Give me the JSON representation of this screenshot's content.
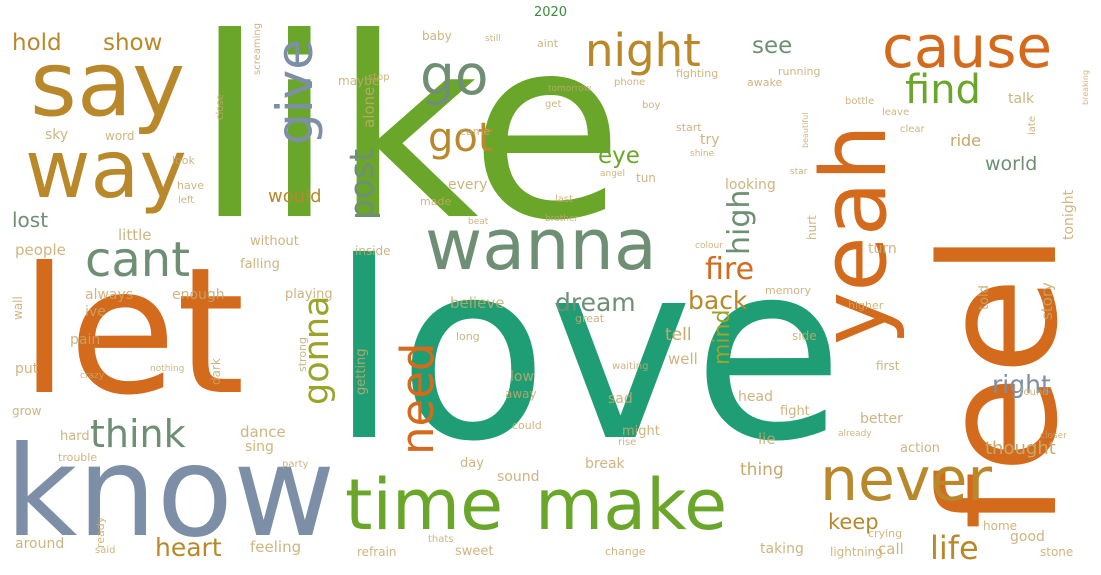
{
  "title": "2020",
  "palette": {
    "green": "#6aa62a",
    "teal": "#1f9e75",
    "orange": "#d46a1c",
    "gold": "#b8882a",
    "slate": "#7d8fa6",
    "olive": "#9aa32a",
    "sage": "#6f8f74",
    "tan": "#c5a96b"
  },
  "words": [
    {
      "text": "like",
      "color": "green"
    },
    {
      "text": "love",
      "color": "teal"
    },
    {
      "text": "let",
      "color": "orange"
    },
    {
      "text": "know",
      "color": "slate"
    },
    {
      "text": "feel",
      "color": "orange"
    },
    {
      "text": "say",
      "color": "gold"
    },
    {
      "text": "way",
      "color": "gold"
    },
    {
      "text": "yeah",
      "color": "orange"
    },
    {
      "text": "wanna",
      "color": "sage"
    },
    {
      "text": "time",
      "color": "green"
    },
    {
      "text": "make",
      "color": "green"
    },
    {
      "text": "never",
      "color": "gold"
    },
    {
      "text": "cause",
      "color": "orange"
    },
    {
      "text": "night",
      "color": "gold"
    },
    {
      "text": "give",
      "color": "slate"
    },
    {
      "text": "go",
      "color": "sage"
    },
    {
      "text": "cant",
      "color": "sage"
    },
    {
      "text": "find",
      "color": "green"
    },
    {
      "text": "got",
      "color": "gold"
    },
    {
      "text": "need",
      "color": "orange"
    },
    {
      "text": "think",
      "color": "sage"
    },
    {
      "text": "post",
      "color": "sage"
    },
    {
      "text": "gonna",
      "color": "olive"
    },
    {
      "text": "high",
      "color": "sage"
    },
    {
      "text": "fire",
      "color": "orange"
    },
    {
      "text": "dream",
      "color": "sage"
    },
    {
      "text": "back",
      "color": "gold"
    },
    {
      "text": "life",
      "color": "gold"
    },
    {
      "text": "heart",
      "color": "gold"
    },
    {
      "text": "right",
      "color": "slate"
    },
    {
      "text": "hold",
      "color": "gold"
    },
    {
      "text": "show",
      "color": "gold"
    },
    {
      "text": "eye",
      "color": "green"
    },
    {
      "text": "see",
      "color": "sage"
    },
    {
      "text": "mind",
      "color": "olive"
    },
    {
      "text": "keep",
      "color": "gold"
    },
    {
      "text": "would",
      "color": "gold"
    },
    {
      "text": "lost",
      "color": "sage"
    },
    {
      "text": "world",
      "color": "sage"
    },
    {
      "text": "story",
      "color": "tan"
    },
    {
      "text": "tonight",
      "color": "tan"
    },
    {
      "text": "thought",
      "color": "tan"
    },
    {
      "text": "dance",
      "color": "tan"
    },
    {
      "text": "believe",
      "color": "tan"
    },
    {
      "text": "little",
      "color": "tan"
    },
    {
      "text": "people",
      "color": "tan"
    },
    {
      "text": "falling",
      "color": "tan"
    },
    {
      "text": "without",
      "color": "tan"
    },
    {
      "text": "looking",
      "color": "tan"
    },
    {
      "text": "every",
      "color": "tan"
    },
    {
      "text": "sky",
      "color": "tan"
    },
    {
      "text": "word",
      "color": "tan"
    },
    {
      "text": "alone",
      "color": "tan"
    },
    {
      "text": "maybe",
      "color": "tan"
    },
    {
      "text": "baby",
      "color": "tan"
    },
    {
      "text": "made",
      "color": "tan"
    },
    {
      "text": "inside",
      "color": "tan"
    },
    {
      "text": "always",
      "color": "tan"
    },
    {
      "text": "enough",
      "color": "tan"
    },
    {
      "text": "playing",
      "color": "tan"
    },
    {
      "text": "getting",
      "color": "tan"
    },
    {
      "text": "ive",
      "color": "tan"
    },
    {
      "text": "pain",
      "color": "tan"
    },
    {
      "text": "put",
      "color": "tan"
    },
    {
      "text": "grow",
      "color": "tan"
    },
    {
      "text": "hard",
      "color": "tan"
    },
    {
      "text": "trouble",
      "color": "tan"
    },
    {
      "text": "around",
      "color": "tan"
    },
    {
      "text": "ready",
      "color": "tan"
    },
    {
      "text": "said",
      "color": "tan"
    },
    {
      "text": "feeling",
      "color": "tan"
    },
    {
      "text": "sing",
      "color": "tan"
    },
    {
      "text": "refrain",
      "color": "tan"
    },
    {
      "text": "sweet",
      "color": "tan"
    },
    {
      "text": "sound",
      "color": "tan"
    },
    {
      "text": "break",
      "color": "tan"
    },
    {
      "text": "day",
      "color": "tan"
    },
    {
      "text": "sad",
      "color": "tan"
    },
    {
      "text": "low",
      "color": "tan"
    },
    {
      "text": "away",
      "color": "tan"
    },
    {
      "text": "could",
      "color": "tan"
    },
    {
      "text": "might",
      "color": "tan"
    },
    {
      "text": "well",
      "color": "tan"
    },
    {
      "text": "tell",
      "color": "tan"
    },
    {
      "text": "thing",
      "color": "tan"
    },
    {
      "text": "lie",
      "color": "tan"
    },
    {
      "text": "head",
      "color": "tan"
    },
    {
      "text": "fight",
      "color": "tan"
    },
    {
      "text": "better",
      "color": "tan"
    },
    {
      "text": "memory",
      "color": "tan"
    },
    {
      "text": "side",
      "color": "tan"
    },
    {
      "text": "told",
      "color": "tan"
    },
    {
      "text": "turn",
      "color": "tan"
    },
    {
      "text": "hurt",
      "color": "tan"
    },
    {
      "text": "try",
      "color": "tan"
    },
    {
      "text": "ride",
      "color": "tan"
    },
    {
      "text": "talk",
      "color": "tan"
    },
    {
      "text": "awake",
      "color": "tan"
    },
    {
      "text": "running",
      "color": "tan"
    },
    {
      "text": "came",
      "color": "tan"
    },
    {
      "text": "start",
      "color": "tan"
    },
    {
      "text": "last",
      "color": "tan"
    },
    {
      "text": "call",
      "color": "tan"
    },
    {
      "text": "taking",
      "color": "tan"
    },
    {
      "text": "lightning",
      "color": "tan"
    },
    {
      "text": "crying",
      "color": "tan"
    },
    {
      "text": "good",
      "color": "tan"
    },
    {
      "text": "change",
      "color": "tan"
    },
    {
      "text": "action",
      "color": "tan"
    },
    {
      "text": "first",
      "color": "tan"
    },
    {
      "text": "home",
      "color": "tan"
    },
    {
      "text": "stone",
      "color": "tan"
    },
    {
      "text": "strong",
      "color": "tan"
    },
    {
      "text": "great",
      "color": "tan"
    },
    {
      "text": "long",
      "color": "tan"
    },
    {
      "text": "party",
      "color": "tan"
    },
    {
      "text": "thats",
      "color": "tan"
    },
    {
      "text": "dark",
      "color": "tan"
    },
    {
      "text": "wall",
      "color": "tan"
    },
    {
      "text": "look",
      "color": "tan"
    },
    {
      "text": "close",
      "color": "tan"
    },
    {
      "text": "left",
      "color": "tan"
    },
    {
      "text": "have",
      "color": "tan"
    },
    {
      "text": "fighting",
      "color": "tan"
    },
    {
      "text": "phone",
      "color": "tan"
    },
    {
      "text": "stop",
      "color": "tan"
    },
    {
      "text": "aint",
      "color": "tan"
    },
    {
      "text": "get",
      "color": "tan"
    },
    {
      "text": "boy",
      "color": "tan"
    },
    {
      "text": "tun",
      "color": "tan"
    },
    {
      "text": "higher",
      "color": "tan"
    },
    {
      "text": "leave",
      "color": "tan"
    },
    {
      "text": "bottle",
      "color": "tan"
    },
    {
      "text": "late",
      "color": "tan"
    },
    {
      "text": "clear",
      "color": "tan"
    },
    {
      "text": "nothing",
      "color": "tan"
    },
    {
      "text": "already",
      "color": "tan"
    },
    {
      "text": "waiting",
      "color": "tan"
    },
    {
      "text": "found",
      "color": "tan"
    },
    {
      "text": "rise",
      "color": "tan"
    },
    {
      "text": "still",
      "color": "tan"
    },
    {
      "text": "angel",
      "color": "tan"
    },
    {
      "text": "crazy",
      "color": "tan"
    },
    {
      "text": "tomorrow",
      "color": "tan"
    },
    {
      "text": "closer",
      "color": "tan"
    },
    {
      "text": "breaking",
      "color": "tan"
    },
    {
      "text": "beautiful",
      "color": "tan"
    },
    {
      "text": "screaming",
      "color": "tan"
    },
    {
      "text": "shine",
      "color": "tan"
    },
    {
      "text": "star",
      "color": "tan"
    },
    {
      "text": "brother",
      "color": "tan"
    },
    {
      "text": "colour",
      "color": "tan"
    },
    {
      "text": "beat",
      "color": "tan"
    }
  ]
}
